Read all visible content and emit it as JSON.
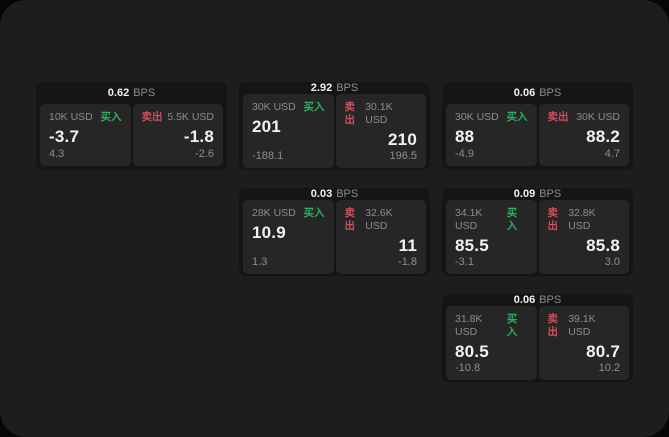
{
  "labels": {
    "bps": "BPS",
    "buy": "买入",
    "sell": "卖出"
  },
  "colors": {
    "page_bg": "#060606",
    "window_bg": "#1d1d1d",
    "card_bg": "#151515",
    "panel_bg": "#262626",
    "value_text": "#f2f2f2",
    "muted_text": "#8d8d8d",
    "buy": "#2fae62",
    "sell": "#c9505e"
  },
  "cards": [
    {
      "bps": "0.62",
      "col": 1,
      "row": 1,
      "buy": {
        "amount": "10K USD",
        "value": "-3.7",
        "delta": "4.3"
      },
      "sell": {
        "amount": "5.5K USD",
        "value": "-1.8",
        "delta": "-2.6"
      }
    },
    {
      "bps": "2.92",
      "col": 2,
      "row": 1,
      "buy": {
        "amount": "30K USD",
        "value": "201",
        "delta": "-188.1"
      },
      "sell": {
        "amount": "30.1K USD",
        "value": "210",
        "delta": "196.5"
      }
    },
    {
      "bps": "0.06",
      "col": 3,
      "row": 1,
      "buy": {
        "amount": "30K USD",
        "value": "88",
        "delta": "-4.9"
      },
      "sell": {
        "amount": "30K USD",
        "value": "88.2",
        "delta": "4.7"
      }
    },
    {
      "bps": "0.03",
      "col": 2,
      "row": 2,
      "buy": {
        "amount": "28K USD",
        "value": "10.9",
        "delta": "1.3"
      },
      "sell": {
        "amount": "32.6K USD",
        "value": "11",
        "delta": "-1.8"
      }
    },
    {
      "bps": "0.09",
      "col": 3,
      "row": 2,
      "buy": {
        "amount": "34.1K USD",
        "value": "85.5",
        "delta": "-3.1"
      },
      "sell": {
        "amount": "32.8K USD",
        "value": "85.8",
        "delta": "3.0"
      }
    },
    {
      "bps": "0.06",
      "col": 3,
      "row": 3,
      "buy": {
        "amount": "31.8K USD",
        "value": "80.5",
        "delta": "-10.8"
      },
      "sell": {
        "amount": "39.1K USD",
        "value": "80.7",
        "delta": "10.2"
      }
    }
  ]
}
